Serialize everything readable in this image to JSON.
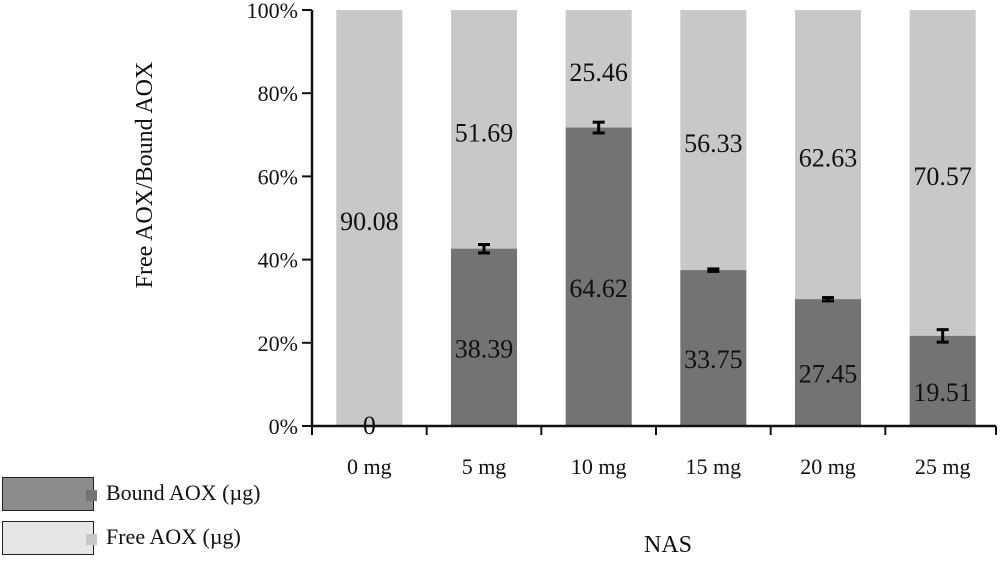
{
  "chart_data": {
    "type": "bar",
    "stacked": true,
    "percent_stacked": true,
    "title": "",
    "xlabel": "NAS",
    "ylabel": "Free AOX/Bound AOX",
    "ylim": [
      0,
      100
    ],
    "y_ticks": [
      "0%",
      "20%",
      "40%",
      "60%",
      "80%",
      "100%"
    ],
    "categories": [
      "0 mg",
      "5 mg",
      "10 mg",
      "15 mg",
      "20 mg",
      "25 mg"
    ],
    "series": [
      {
        "name": "Bound AOX (µg)",
        "color": "#737373",
        "values": [
          0,
          38.39,
          64.62,
          33.75,
          27.45,
          19.51
        ],
        "labels": [
          "0",
          "38.39",
          "64.62",
          "33.75",
          "27.45",
          "19.51"
        ],
        "error_pct": [
          0,
          1.0,
          1.3,
          0.3,
          0.4,
          1.5
        ]
      },
      {
        "name": "Free AOX (µg)",
        "color": "#c8c8c8",
        "values": [
          90.08,
          51.69,
          25.46,
          56.33,
          62.63,
          70.57
        ],
        "labels": [
          "90.08",
          "51.69",
          "25.46",
          "56.33",
          "62.63",
          "70.57"
        ]
      }
    ],
    "grid": false,
    "legend_position": "bottom-left"
  },
  "colors": {
    "bound": "#737373",
    "free": "#c8c8c8",
    "legend_box_bound": "#8c8c8c",
    "legend_box_free": "#e6e6e6",
    "axis": "#111111"
  }
}
